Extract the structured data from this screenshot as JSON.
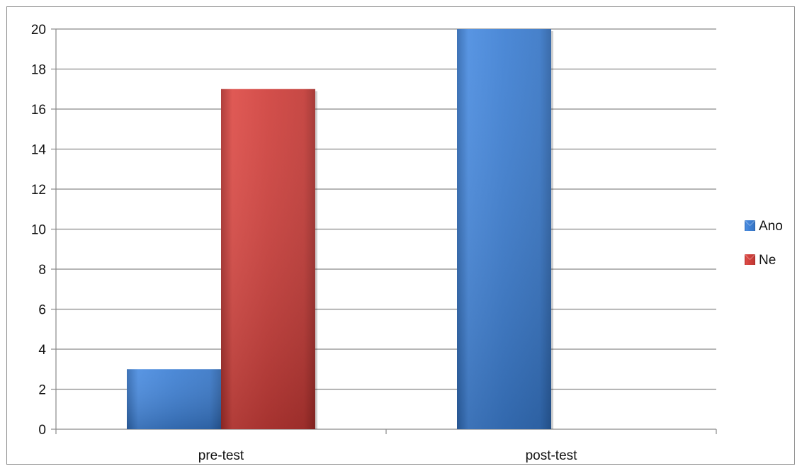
{
  "chart_data": {
    "type": "bar",
    "categories": [
      "pre-test",
      "post-test"
    ],
    "series": [
      {
        "name": "Ano",
        "values": [
          3,
          20
        ],
        "color": "#3d7fd3"
      },
      {
        "name": "Ne",
        "values": [
          17,
          0
        ],
        "color": "#cf3f3b"
      }
    ],
    "title": "",
    "xlabel": "",
    "ylabel": "",
    "ylim": [
      0,
      20
    ],
    "y_ticks": [
      0,
      2,
      4,
      6,
      8,
      10,
      12,
      14,
      16,
      18,
      20
    ],
    "grid": true,
    "legend_position": "right"
  }
}
